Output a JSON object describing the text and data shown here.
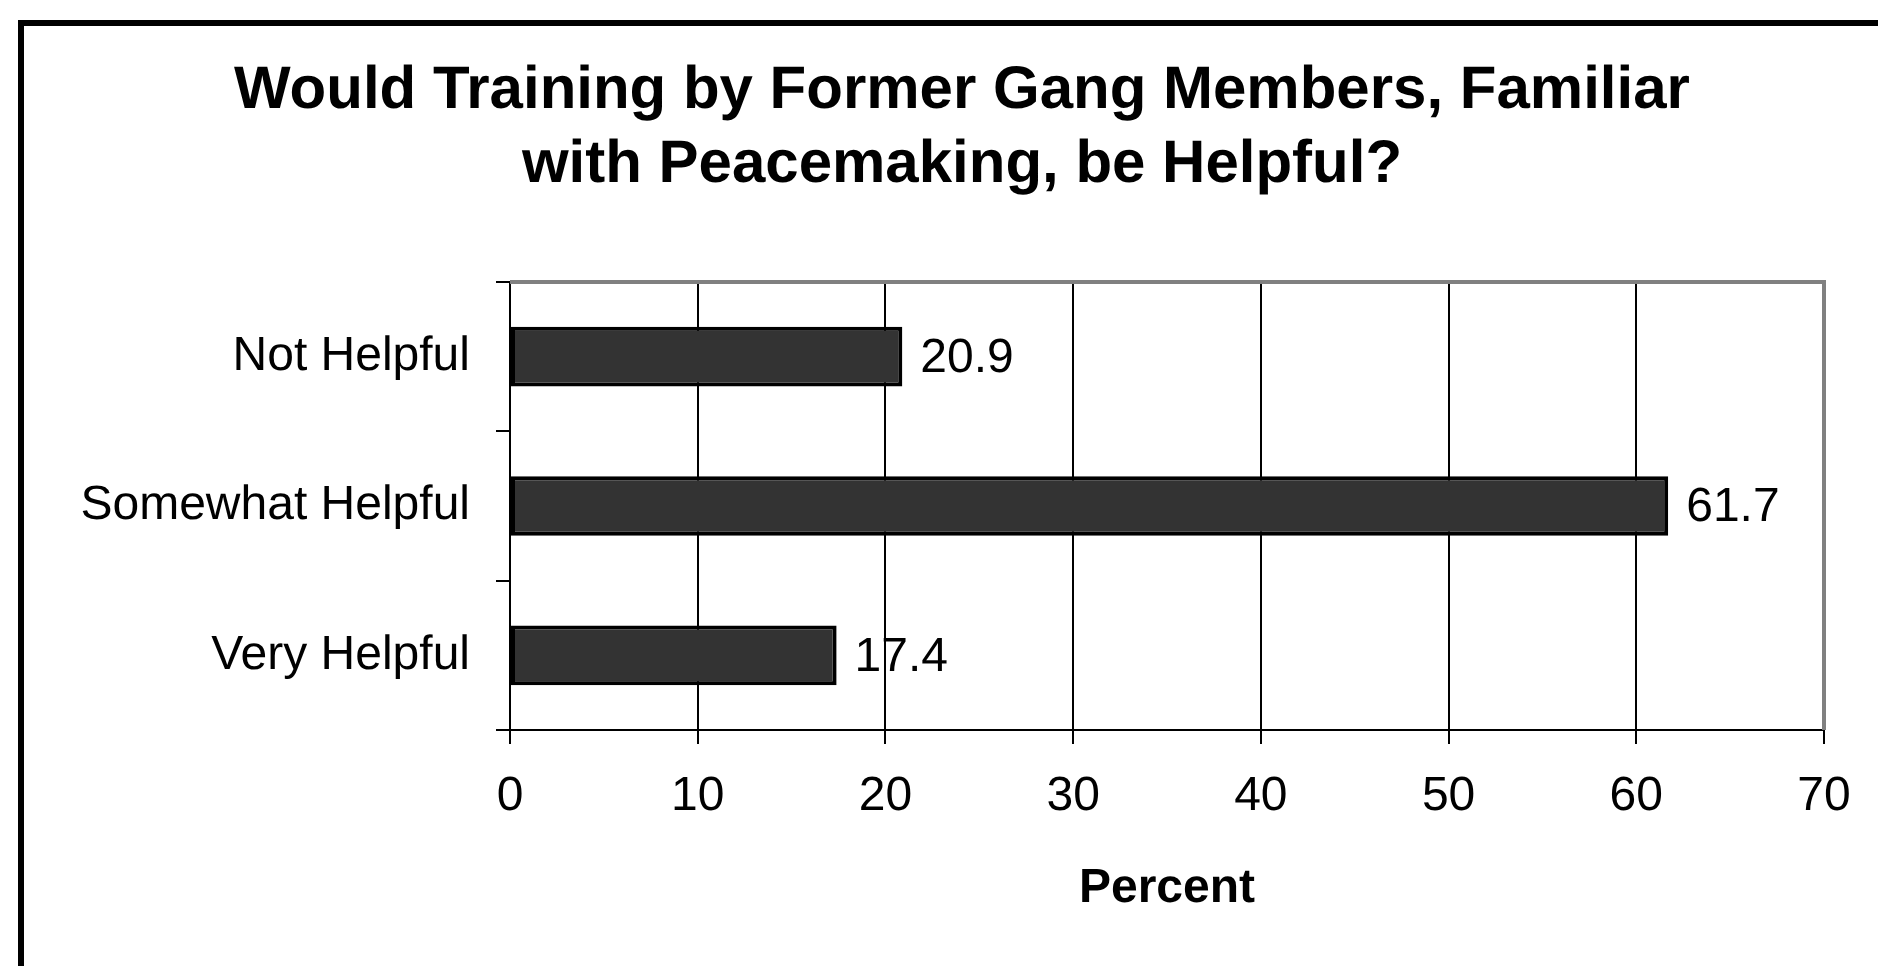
{
  "chart_data": {
    "type": "bar",
    "orientation": "horizontal",
    "title": "Would Training by Former Gang Members, Familiar\nwith Peacemaking, be Helpful?",
    "xlabel": "Percent",
    "categories": [
      "Not Helpful",
      "Somewhat Helpful",
      "Very Helpful"
    ],
    "values": [
      20.9,
      61.7,
      17.4
    ],
    "color": "#333333",
    "xlim": [
      0,
      70
    ],
    "xticks": [
      0,
      10,
      20,
      30,
      40,
      50,
      60,
      70
    ],
    "grid": "x",
    "data_labels": true
  }
}
